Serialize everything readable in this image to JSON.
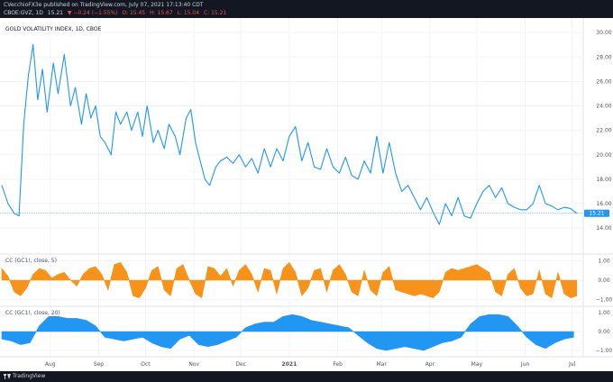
{
  "header": {
    "publisher_line": "CVecchioFX3e published on TradingView.com, July 07, 2021 17:13:40 CDT",
    "symbol": "CBOE:GVZ, 1D",
    "last": "15.21",
    "change": "▼ −0.24 (−1.55%)",
    "o": "O: 15.45",
    "h": "H: 15.67",
    "l": "L: 15.04",
    "c": "C: 15.21"
  },
  "footer": {
    "brand": "TradingView"
  },
  "colors": {
    "price": "#2196f3",
    "cc5": "#f7931a",
    "cc20": "#2196f3",
    "down": "#ef5350",
    "axis_text": "#4c525e",
    "grid": "#f0f3fa",
    "header_bg": "#131722"
  },
  "chart_data": [
    {
      "type": "line",
      "title": "GOLD VOLATILITY INDEX, 1D, CBOE",
      "last_value_label": "15.21",
      "y_ticks": [
        "14.00",
        "16.00",
        "18.00",
        "20.00",
        "22.00",
        "24.00",
        "26.00",
        "28.00",
        "30.00"
      ],
      "ylim": [
        13.2,
        30.6
      ],
      "x_ticks": [
        "Aug",
        "Sep",
        "Oct",
        "Nov",
        "Dec",
        "2021",
        "Feb",
        "Mar",
        "Apr",
        "May",
        "Jun",
        "Jul"
      ],
      "x_tick_days": [
        31,
        62,
        92,
        123,
        153,
        184,
        215,
        243,
        274,
        304,
        335,
        365
      ],
      "xlim": [
        0,
        371
      ],
      "series": [
        {
          "x": [
            0,
            4,
            8,
            11,
            14,
            17,
            20,
            23,
            26,
            29,
            33,
            36,
            40,
            44,
            47,
            51,
            54,
            57,
            60,
            63,
            66,
            70,
            73,
            76,
            80,
            83,
            87,
            90,
            93,
            97,
            100,
            104,
            107,
            111,
            114,
            118,
            121,
            124,
            127,
            130,
            133,
            137,
            140,
            144,
            148,
            152,
            156,
            160,
            164,
            168,
            172,
            176,
            180,
            184,
            188,
            192,
            196,
            200,
            204,
            208,
            212,
            216,
            220,
            224,
            228,
            232,
            236,
            240,
            244,
            248,
            252,
            256,
            260,
            264,
            268,
            272,
            276,
            280,
            284,
            288,
            292,
            296,
            300,
            304,
            308,
            312,
            316,
            320,
            324,
            328,
            332,
            336,
            340,
            344,
            348,
            352,
            356,
            360,
            364,
            368
          ],
          "y": [
            17.5,
            16.0,
            15.2,
            15.0,
            22.5,
            26.5,
            29.0,
            24.5,
            27.0,
            23.5,
            27.5,
            25.0,
            28.2,
            24.0,
            25.5,
            22.5,
            25.0,
            23.0,
            24.0,
            21.5,
            21.0,
            20.0,
            23.5,
            22.5,
            23.5,
            22.0,
            23.5,
            21.5,
            24.0,
            21.0,
            22.0,
            20.5,
            22.5,
            21.5,
            20.0,
            23.0,
            23.7,
            21.0,
            19.5,
            18.0,
            17.5,
            19.0,
            19.5,
            19.8,
            19.3,
            20.0,
            19.0,
            19.7,
            18.5,
            20.5,
            19.0,
            20.5,
            19.5,
            21.5,
            22.3,
            19.5,
            21.0,
            19.0,
            18.8,
            20.5,
            19.0,
            18.5,
            19.8,
            18.3,
            18.0,
            19.5,
            18.5,
            21.5,
            18.5,
            21.0,
            18.5,
            17.0,
            17.5,
            16.5,
            15.5,
            16.5,
            15.3,
            14.3,
            16.0,
            15.0,
            16.5,
            15.0,
            14.8,
            16.0,
            17.0,
            17.5,
            16.5,
            17.3,
            16.0,
            15.7,
            15.5,
            15.5,
            16.0,
            17.5,
            16.0,
            15.8,
            15.5,
            15.7,
            15.6,
            15.21
          ]
        }
      ]
    },
    {
      "type": "area",
      "title": "CC (GC1!, close, 5)",
      "y_ticks": [
        "1.00",
        "0.00",
        "−1.00"
      ],
      "ylim": [
        -1.15,
        1.15
      ],
      "series": [
        {
          "x": [
            0,
            4,
            8,
            12,
            16,
            20,
            24,
            28,
            32,
            36,
            40,
            44,
            48,
            52,
            56,
            60,
            64,
            68,
            72,
            76,
            80,
            84,
            88,
            92,
            96,
            100,
            104,
            108,
            112,
            116,
            120,
            124,
            128,
            132,
            136,
            140,
            144,
            148,
            152,
            156,
            160,
            164,
            168,
            172,
            176,
            180,
            184,
            188,
            192,
            196,
            200,
            204,
            208,
            212,
            216,
            220,
            224,
            228,
            232,
            236,
            240,
            244,
            248,
            252,
            256,
            260,
            264,
            268,
            272,
            276,
            280,
            284,
            288,
            292,
            296,
            300,
            304,
            308,
            312,
            316,
            320,
            324,
            328,
            332,
            336,
            340,
            344,
            348,
            352,
            356,
            360,
            364,
            368
          ],
          "values": [
            0.6,
            0.2,
            -0.6,
            -0.8,
            -0.4,
            0.3,
            0.6,
            0.5,
            0.1,
            0.3,
            0.4,
            0.0,
            -0.3,
            0.3,
            0.6,
            0.7,
            0.3,
            -0.5,
            0.8,
            0.9,
            0.4,
            -0.8,
            -0.9,
            -0.4,
            0.5,
            0.7,
            -0.5,
            -0.8,
            0.6,
            0.8,
            0.0,
            -0.7,
            -0.9,
            0.7,
            0.6,
            0.2,
            0.6,
            -0.3,
            0.5,
            0.8,
            0.3,
            -0.6,
            0.6,
            0.5,
            -0.7,
            0.6,
            0.9,
            0.4,
            -0.8,
            -0.4,
            0.5,
            0.6,
            -0.6,
            0.5,
            0.8,
            0.3,
            -0.6,
            -0.8,
            0.5,
            -0.5,
            -0.8,
            0.4,
            0.7,
            -0.5,
            -0.6,
            -0.7,
            -0.8,
            -0.7,
            -0.8,
            -0.9,
            -0.6,
            0.4,
            0.6,
            0.5,
            0.6,
            0.7,
            0.8,
            0.6,
            0.4,
            -0.6,
            -0.8,
            0.3,
            0.6,
            -0.4,
            -0.8,
            -0.7,
            0.5,
            -0.7,
            -0.9,
            0.4,
            -0.7,
            -0.9,
            -0.8
          ]
        }
      ]
    },
    {
      "type": "area",
      "title": "CC (GC1!, close, 20)",
      "y_ticks": [
        "1.00",
        "0.00",
        "−1.00"
      ],
      "ylim": [
        -1.15,
        1.15
      ],
      "series": [
        {
          "x": [
            0,
            6,
            12,
            18,
            24,
            30,
            36,
            42,
            48,
            54,
            60,
            66,
            72,
            78,
            84,
            90,
            96,
            102,
            108,
            114,
            120,
            126,
            132,
            138,
            144,
            150,
            156,
            162,
            168,
            174,
            180,
            186,
            192,
            198,
            204,
            210,
            216,
            222,
            228,
            234,
            240,
            246,
            252,
            258,
            264,
            270,
            276,
            282,
            288,
            294,
            300,
            306,
            312,
            318,
            324,
            330,
            336,
            342,
            348,
            354,
            360,
            366
          ],
          "values": [
            -0.4,
            -0.5,
            -0.7,
            -0.6,
            0.3,
            0.8,
            0.8,
            0.7,
            0.7,
            0.6,
            0.3,
            -0.3,
            -0.4,
            -0.5,
            -0.4,
            -0.3,
            -0.6,
            -0.8,
            -0.9,
            -0.4,
            -0.2,
            -0.7,
            -0.8,
            -0.7,
            -0.5,
            -0.3,
            0.2,
            0.4,
            0.5,
            0.5,
            0.8,
            0.9,
            0.8,
            0.6,
            0.5,
            0.4,
            0.3,
            0.2,
            -0.2,
            -0.6,
            -0.9,
            -1.0,
            -0.9,
            -0.8,
            -0.9,
            -1.0,
            -0.8,
            -0.6,
            -0.5,
            -0.3,
            0.4,
            0.8,
            0.9,
            0.9,
            0.8,
            0.3,
            -0.3,
            -0.7,
            -0.9,
            -0.6,
            -0.4,
            -0.3
          ]
        }
      ]
    }
  ]
}
